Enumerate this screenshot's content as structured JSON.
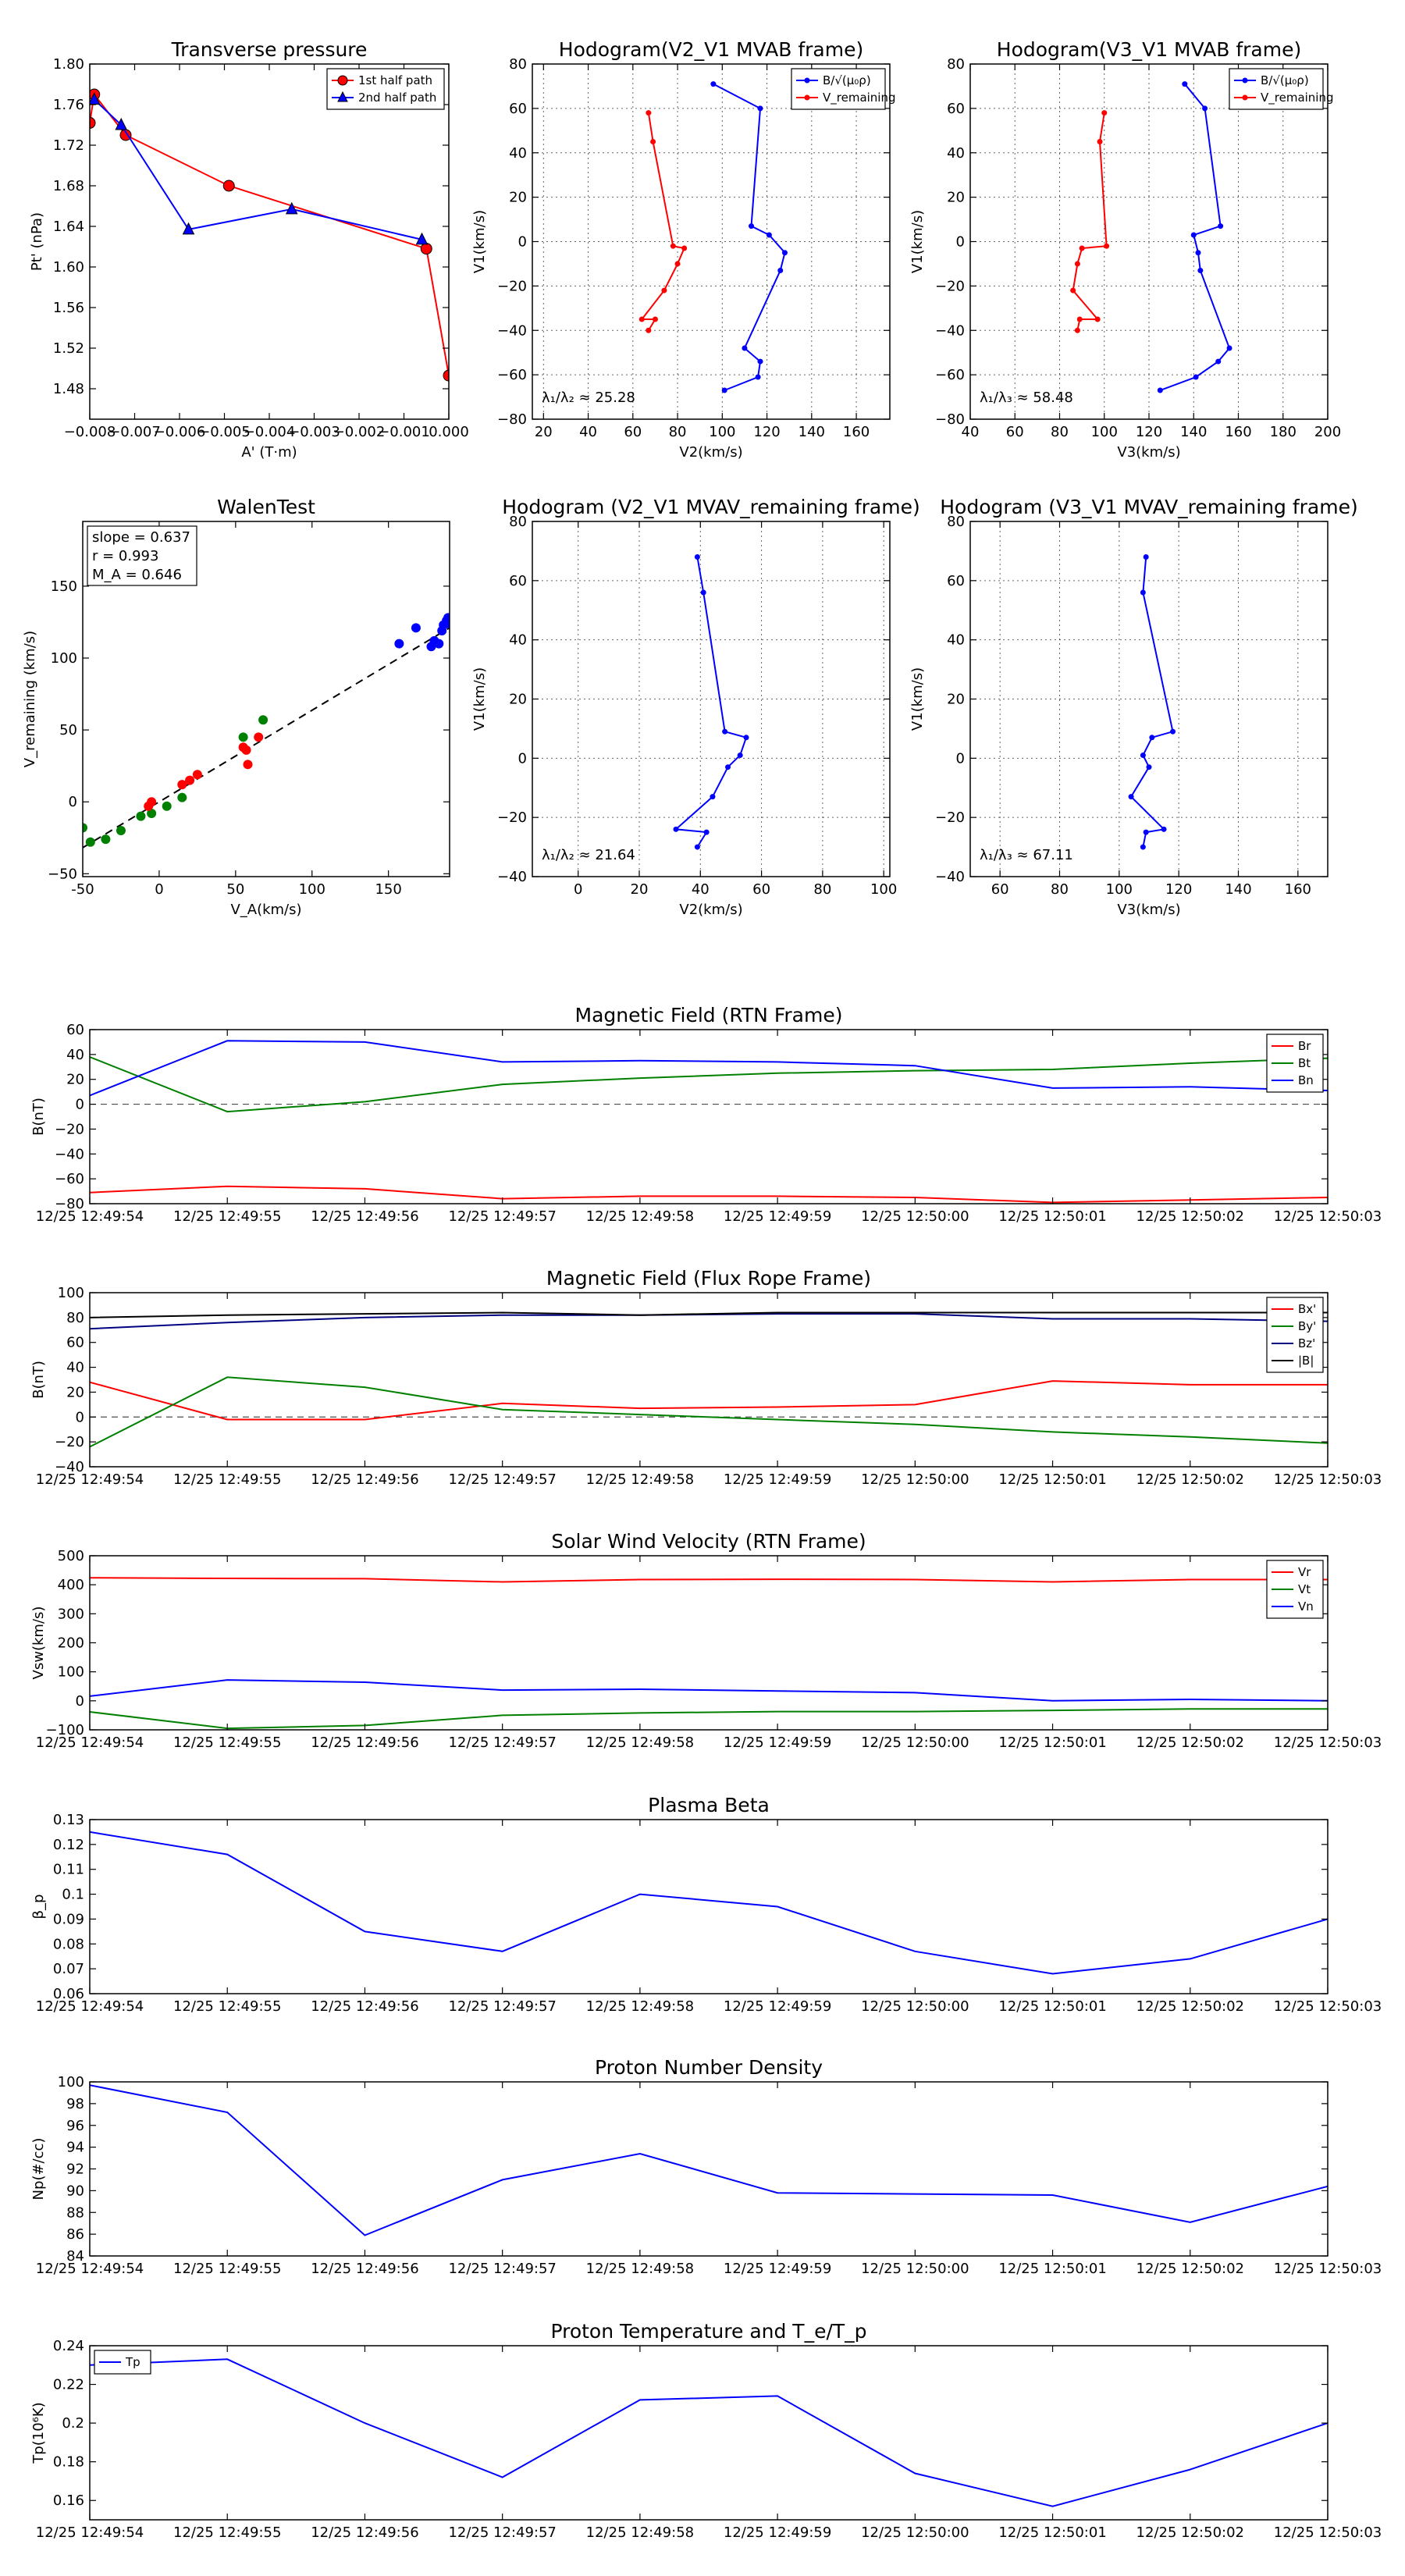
{
  "colors": {
    "red": "#ff0000",
    "green": "#008000",
    "blue": "#0000ff",
    "navy": "#000080",
    "black": "#000000"
  },
  "time_ticks": [
    "12/25 12:49:54",
    "12/25 12:49:55",
    "12/25 12:49:56",
    "12/25 12:49:57",
    "12/25 12:49:58",
    "12/25 12:49:59",
    "12/25 12:50:00",
    "12/25 12:50:01",
    "12/25 12:50:02",
    "12/25 12:50:03"
  ],
  "chart_data": [
    {
      "id": "transverse-pressure",
      "type": "line",
      "title": "Transverse pressure",
      "xlabel": "A' (T·m)",
      "ylabel": "Pt' (nPa)",
      "xlim": [
        -0.008,
        0.0
      ],
      "ylim": [
        1.45,
        1.8
      ],
      "xticks": [
        -0.008,
        -0.007,
        -0.006,
        -0.005,
        -0.004,
        -0.003,
        -0.002,
        -0.001,
        0.0
      ],
      "xtick_labels": [
        "−0.008",
        "−0.007",
        "−0.006",
        "−0.005",
        "−0.004",
        "−0.003",
        "−0.002",
        "−0.001",
        "0.000"
      ],
      "yticks": [
        1.48,
        1.52,
        1.56,
        1.6,
        1.64,
        1.68,
        1.72,
        1.76,
        1.8
      ],
      "ytick_labels": [
        "1.48",
        "1.52",
        "1.56",
        "1.60",
        "1.64",
        "1.68",
        "1.72",
        "1.76",
        "1.80"
      ],
      "grid": false,
      "legend": "top-right",
      "series": [
        {
          "name": "1st half path",
          "color": "#ff0000",
          "marker": "circle",
          "x": [
            -0.008,
            -0.0079,
            -0.0072,
            -0.0049,
            -0.0005,
            0.0
          ],
          "y": [
            1.742,
            1.77,
            1.73,
            1.68,
            1.618,
            1.493
          ]
        },
        {
          "name": "2nd half path",
          "color": "#0000ff",
          "marker": "triangle",
          "x": [
            -0.0079,
            -0.0073,
            -0.0058,
            -0.0035,
            -0.0006
          ],
          "y": [
            1.765,
            1.74,
            1.637,
            1.657,
            1.627
          ]
        }
      ]
    },
    {
      "id": "hodogram-v2v1-mvab",
      "type": "line",
      "title": "Hodogram(V2_V1 MVAB frame)",
      "xlabel": "V2(km/s)",
      "ylabel": "V1(km/s)",
      "xlim": [
        15,
        175
      ],
      "ylim": [
        -80,
        80
      ],
      "xticks": [
        20,
        40,
        60,
        80,
        100,
        120,
        140,
        160
      ],
      "yticks": [
        -80,
        -60,
        -40,
        -20,
        0,
        20,
        40,
        60,
        80
      ],
      "grid": true,
      "legend": "top-right",
      "annotation": "λ₁/λ₂ ≈ 25.28",
      "series": [
        {
          "name": "B/√(μ₀ρ)",
          "color": "#0000ff",
          "x": [
            96,
            117,
            113,
            121,
            128,
            126,
            110,
            117,
            116,
            101
          ],
          "y": [
            71,
            60,
            7,
            3,
            -5,
            -13,
            -48,
            -54,
            -61,
            -67
          ]
        },
        {
          "name": "V_remaining",
          "color": "#ff0000",
          "x": [
            67,
            69,
            78,
            83,
            80,
            74,
            64,
            70,
            67
          ],
          "y": [
            58,
            45,
            -2,
            -3,
            -10,
            -22,
            -35,
            -35,
            -40
          ]
        }
      ]
    },
    {
      "id": "hodogram-v3v1-mvab",
      "type": "line",
      "title": "Hodogram(V3_V1 MVAB frame)",
      "xlabel": "V3(km/s)",
      "ylabel": "V1(km/s)",
      "xlim": [
        40,
        200
      ],
      "ylim": [
        -80,
        80
      ],
      "xticks": [
        40,
        60,
        80,
        100,
        120,
        140,
        160,
        180,
        200
      ],
      "yticks": [
        -80,
        -60,
        -40,
        -20,
        0,
        20,
        40,
        60,
        80
      ],
      "grid": true,
      "legend": "top-right",
      "annotation": "λ₁/λ₃ ≈ 58.48",
      "series": [
        {
          "name": "B/√(μ₀ρ)",
          "color": "#0000ff",
          "x": [
            136,
            145,
            152,
            140,
            142,
            143,
            156,
            151,
            141,
            125
          ],
          "y": [
            71,
            60,
            7,
            3,
            -5,
            -13,
            -48,
            -54,
            -61,
            -67
          ]
        },
        {
          "name": "V_remaining",
          "color": "#ff0000",
          "x": [
            100,
            98,
            101,
            90,
            88,
            86,
            97,
            89,
            88
          ],
          "y": [
            58,
            45,
            -2,
            -3,
            -10,
            -22,
            -35,
            -35,
            -40
          ]
        }
      ]
    },
    {
      "id": "walen-test",
      "type": "scatter",
      "title": "WalenTest",
      "xlabel": "V_A(km/s)",
      "ylabel": "V_remaining (km/s)",
      "xlim": [
        -50,
        190
      ],
      "ylim": [
        -52,
        195
      ],
      "xticks": [
        -50,
        0,
        50,
        100,
        150
      ],
      "yticks": [
        -50,
        0,
        50,
        100,
        150
      ],
      "grid": false,
      "stats": {
        "slope": "slope = 0.637",
        "r": "r = 0.993",
        "ma": "M_A = 0.646"
      },
      "fit_line": {
        "slope": 0.637,
        "intercept": 0,
        "x_range": [
          -50,
          190
        ]
      },
      "series": [
        {
          "name": "green",
          "color": "#008000",
          "x": [
            -50,
            -45,
            -35,
            -25,
            -12,
            -5,
            5,
            15,
            55,
            68
          ],
          "y": [
            -18,
            -28,
            -26,
            -20,
            -10,
            -8,
            -3,
            3,
            45,
            57
          ]
        },
        {
          "name": "red",
          "color": "#ff0000",
          "x": [
            -7,
            -5,
            15,
            20,
            25,
            55,
            57,
            58,
            65
          ],
          "y": [
            -3,
            0,
            12,
            15,
            19,
            38,
            36,
            26,
            45
          ]
        },
        {
          "name": "blue",
          "color": "#0000ff",
          "x": [
            157,
            168,
            178,
            180,
            183,
            185,
            186,
            188,
            189,
            189
          ],
          "y": [
            110,
            121,
            108,
            112,
            110,
            119,
            123,
            126,
            124,
            128
          ]
        }
      ]
    },
    {
      "id": "hodogram-v2v1-mvav",
      "type": "line",
      "title": "Hodogram (V2_V1 MVAV_remaining frame)",
      "xlabel": "V2(km/s)",
      "ylabel": "V1(km/s)",
      "xlim": [
        -15,
        102
      ],
      "ylim": [
        -40,
        80
      ],
      "xticks": [
        0,
        20,
        40,
        60,
        80,
        100
      ],
      "yticks": [
        -40,
        -20,
        0,
        20,
        40,
        60,
        80
      ],
      "grid": true,
      "annotation": "λ₁/λ₂ ≈ 21.64",
      "series": [
        {
          "name": "B/√(μ₀ρ)",
          "color": "#0000ff",
          "x": [
            39,
            41,
            48,
            55,
            53,
            49,
            44,
            32,
            42,
            39
          ],
          "y": [
            68,
            56,
            9,
            7,
            1,
            -3,
            -13,
            -24,
            -25,
            -30
          ]
        }
      ]
    },
    {
      "id": "hodogram-v3v1-mvav",
      "type": "line",
      "title": "Hodogram (V3_V1 MVAV_remaining frame)",
      "xlabel": "V3(km/s)",
      "ylabel": "V1(km/s)",
      "xlim": [
        50,
        170
      ],
      "ylim": [
        -40,
        80
      ],
      "xticks": [
        60,
        80,
        100,
        120,
        140,
        160
      ],
      "yticks": [
        -40,
        -20,
        0,
        20,
        40,
        60,
        80
      ],
      "grid": true,
      "annotation": "λ₁/λ₃ ≈ 67.11",
      "series": [
        {
          "name": "B/√(μ₀ρ)",
          "color": "#0000ff",
          "x": [
            109,
            108,
            118,
            111,
            108,
            110,
            104,
            115,
            109,
            108
          ],
          "y": [
            68,
            56,
            9,
            7,
            1,
            -3,
            -13,
            -24,
            -25,
            -30
          ]
        }
      ]
    },
    {
      "id": "magnetic-field-rtn",
      "type": "line",
      "title": "Magnetic Field (RTN Frame)",
      "ylabel": "B(nT)",
      "ylim": [
        -80,
        60
      ],
      "yticks": [
        -80,
        -60,
        -40,
        -20,
        0,
        20,
        40,
        60
      ],
      "zero_line": true,
      "legend": "top-right",
      "series": [
        {
          "name": "Br",
          "color": "#ff0000",
          "values": [
            -71,
            -66,
            -68,
            -76,
            -74,
            -74,
            -75,
            -79,
            -77,
            -75
          ]
        },
        {
          "name": "Bt",
          "color": "#008000",
          "values": [
            38,
            -6,
            2,
            16,
            21,
            25,
            27,
            28,
            33,
            37
          ]
        },
        {
          "name": "Bn",
          "color": "#0000ff",
          "values": [
            7,
            51,
            50,
            34,
            35,
            34,
            31,
            13,
            14,
            11
          ]
        }
      ]
    },
    {
      "id": "magnetic-field-flux-rope",
      "type": "line",
      "title": "Magnetic Field (Flux Rope Frame)",
      "ylabel": "B(nT)",
      "ylim": [
        -40,
        100
      ],
      "yticks": [
        -40,
        -20,
        0,
        20,
        40,
        60,
        80,
        100
      ],
      "zero_line": true,
      "legend": "top-right",
      "series": [
        {
          "name": "Bx'",
          "color": "#ff0000",
          "values": [
            28,
            -2,
            -2,
            11,
            7,
            8,
            10,
            29,
            26,
            26
          ]
        },
        {
          "name": "By'",
          "color": "#008000",
          "values": [
            -24,
            32,
            24,
            6,
            2,
            -2,
            -6,
            -12,
            -16,
            -21
          ]
        },
        {
          "name": "Bz'",
          "color": "#000080",
          "values": [
            71,
            76,
            80,
            82,
            82,
            83,
            83,
            79,
            79,
            77
          ]
        },
        {
          "name": "|B|",
          "color": "#000000",
          "values": [
            80,
            82,
            83,
            84,
            82,
            84,
            84,
            84,
            84,
            84
          ]
        }
      ]
    },
    {
      "id": "solar-wind-velocity",
      "type": "line",
      "title": "Solar Wind Velocity (RTN Frame)",
      "ylabel": "Vsw(km/s)",
      "ylim": [
        -100,
        500
      ],
      "yticks": [
        -100,
        0,
        100,
        200,
        300,
        400,
        500
      ],
      "legend": "top-right",
      "series": [
        {
          "name": "Vr",
          "color": "#ff0000",
          "values": [
            424,
            422,
            421,
            410,
            418,
            419,
            418,
            410,
            418,
            418
          ]
        },
        {
          "name": "Vt",
          "color": "#008000",
          "values": [
            -38,
            -95,
            -85,
            -50,
            -42,
            -37,
            -37,
            -33,
            -28,
            -28
          ]
        },
        {
          "name": "Vn",
          "color": "#0000ff",
          "values": [
            16,
            72,
            64,
            37,
            40,
            34,
            28,
            0,
            5,
            0
          ]
        }
      ]
    },
    {
      "id": "plasma-beta",
      "type": "line",
      "title": "Plasma Beta",
      "ylabel": "β_p",
      "ylim": [
        0.06,
        0.13
      ],
      "yticks": [
        0.06,
        0.07,
        0.08,
        0.09,
        0.1,
        0.11,
        0.12,
        0.13
      ],
      "series": [
        {
          "name": "beta",
          "color": "#0000ff",
          "values": [
            0.125,
            0.116,
            0.085,
            0.077,
            0.1,
            0.095,
            0.077,
            0.068,
            0.074,
            0.09
          ]
        }
      ]
    },
    {
      "id": "proton-number-density",
      "type": "line",
      "title": "Proton Number Density",
      "ylabel": "Np(#/cc)",
      "ylim": [
        84,
        100
      ],
      "yticks": [
        84,
        86,
        88,
        90,
        92,
        94,
        96,
        98,
        100
      ],
      "series": [
        {
          "name": "Np",
          "color": "#0000ff",
          "values": [
            99.7,
            97.2,
            85.9,
            91.0,
            93.4,
            89.8,
            89.7,
            89.6,
            87.1,
            90.4
          ]
        }
      ]
    },
    {
      "id": "proton-temperature",
      "type": "line",
      "title": "Proton Temperature and T_e/T_p",
      "ylabel": "Tp(10⁶K)",
      "ylim": [
        0.15,
        0.24
      ],
      "yticks": [
        0.16,
        0.18,
        0.2,
        0.22,
        0.24
      ],
      "legend": "top-left",
      "series": [
        {
          "name": "Tp",
          "color": "#0000ff",
          "values": [
            0.23,
            0.233,
            0.2,
            0.172,
            0.212,
            0.214,
            0.174,
            0.157,
            0.176,
            0.2
          ]
        }
      ]
    }
  ]
}
